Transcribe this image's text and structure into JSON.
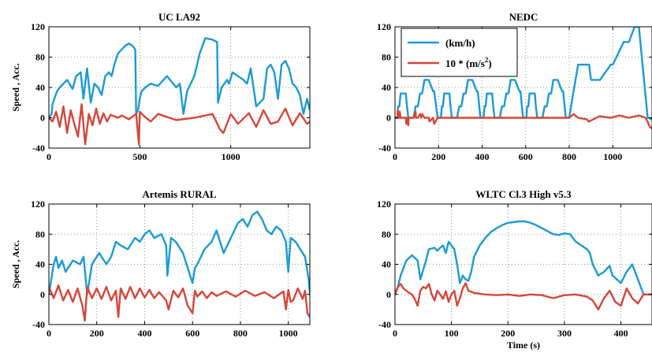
{
  "figure": {
    "legend_panel": 1,
    "legend": [
      {
        "label": "(km/h)",
        "color": "#1b9ad6"
      },
      {
        "label": "10 * (m/s",
        "sup": "2",
        "suffix": ")",
        "color": "#d6463a"
      }
    ]
  },
  "chart_data": [
    {
      "type": "line",
      "title": "UC LA92",
      "xlabel": "",
      "ylabel": "Speed , Acc.",
      "xlim": [
        0,
        1435
      ],
      "ylim": [
        -40,
        120
      ],
      "xticks": [
        0,
        500,
        1000
      ],
      "yticks": [
        -40,
        0,
        40,
        80,
        120
      ],
      "grid": true,
      "series": [
        {
          "color": "#1b9ad6",
          "x": [
            0,
            15,
            20,
            30,
            45,
            60,
            80,
            100,
            130,
            150,
            175,
            190,
            210,
            230,
            250,
            270,
            290,
            310,
            330,
            345,
            360,
            380,
            400,
            420,
            440,
            460,
            475,
            480,
            490,
            500,
            510,
            530,
            560,
            600,
            650,
            700,
            720,
            740,
            760,
            780,
            800,
            830,
            860,
            880,
            900,
            925,
            930,
            950,
            980,
            990,
            1010,
            1040,
            1070,
            1090,
            1110,
            1140,
            1160,
            1180,
            1200,
            1220,
            1240,
            1260,
            1280,
            1300,
            1320,
            1340,
            1360,
            1380,
            1400,
            1420,
            1435
          ],
          "y": [
            0,
            5,
            18,
            25,
            35,
            40,
            45,
            50,
            38,
            55,
            60,
            25,
            65,
            20,
            45,
            40,
            30,
            55,
            60,
            55,
            70,
            85,
            90,
            95,
            98,
            95,
            90,
            5,
            10,
            25,
            35,
            40,
            45,
            42,
            55,
            40,
            45,
            5,
            35,
            45,
            55,
            85,
            105,
            104,
            103,
            100,
            20,
            40,
            50,
            45,
            60,
            55,
            50,
            45,
            65,
            15,
            20,
            25,
            65,
            70,
            60,
            25,
            70,
            75,
            65,
            45,
            40,
            30,
            5,
            25,
            10
          ]
        },
        {
          "color": "#d6463a",
          "x": [
            0,
            20,
            40,
            60,
            80,
            100,
            120,
            140,
            160,
            180,
            200,
            220,
            240,
            260,
            280,
            300,
            320,
            340,
            360,
            380,
            400,
            440,
            480,
            495,
            500,
            520,
            560,
            600,
            700,
            800,
            900,
            940,
            960,
            1000,
            1040,
            1100,
            1140,
            1180,
            1220,
            1260,
            1300,
            1340,
            1380,
            1420,
            1435
          ],
          "y": [
            0,
            -5,
            8,
            -12,
            15,
            -20,
            10,
            -8,
            -25,
            18,
            -35,
            5,
            -10,
            12,
            -8,
            6,
            -5,
            4,
            2,
            0,
            3,
            -2,
            5,
            -35,
            8,
            3,
            -5,
            5,
            -3,
            0,
            5,
            -15,
            -20,
            5,
            -8,
            6,
            -12,
            10,
            -8,
            -5,
            12,
            -10,
            6,
            -8,
            -5
          ]
        }
      ]
    },
    {
      "type": "line",
      "title": "NEDC",
      "xlabel": "",
      "ylabel": "",
      "xlim": [
        0,
        1180
      ],
      "ylim": [
        -40,
        120
      ],
      "xticks": [
        0,
        200,
        400,
        600,
        800,
        1000
      ],
      "yticks": [
        -40,
        0,
        40,
        80,
        120
      ],
      "grid": true,
      "series": [
        {
          "color": "#1b9ad6",
          "x": [
            0,
            11,
            15,
            20,
            26,
            30,
            50,
            55,
            61,
            85,
            95,
            105,
            115,
            125,
            135,
            155,
            175,
            180,
            196,
            211,
            215,
            220,
            226,
            230,
            250,
            255,
            261,
            285,
            295,
            305,
            315,
            325,
            335,
            355,
            375,
            380,
            392,
            407,
            411,
            416,
            422,
            426,
            446,
            451,
            457,
            481,
            491,
            501,
            511,
            521,
            531,
            551,
            571,
            576,
            588,
            603,
            607,
            612,
            618,
            622,
            642,
            647,
            653,
            677,
            687,
            697,
            707,
            717,
            727,
            747,
            767,
            772,
            784,
            800,
            820,
            841,
            891,
            900,
            941,
            991,
            1000,
            1050,
            1074,
            1100,
            1120,
            1160,
            1180
          ],
          "y": [
            0,
            0,
            15,
            15,
            32,
            32,
            32,
            15,
            0,
            0,
            15,
            15,
            32,
            32,
            50,
            50,
            35,
            35,
            0,
            0,
            15,
            15,
            32,
            32,
            32,
            15,
            0,
            0,
            15,
            15,
            32,
            32,
            50,
            50,
            35,
            35,
            0,
            0,
            15,
            15,
            32,
            32,
            32,
            15,
            0,
            0,
            15,
            15,
            32,
            32,
            50,
            50,
            35,
            35,
            0,
            0,
            15,
            15,
            32,
            32,
            32,
            15,
            0,
            0,
            15,
            15,
            32,
            32,
            50,
            50,
            35,
            35,
            0,
            0,
            35,
            70,
            70,
            50,
            50,
            70,
            70,
            100,
            100,
            120,
            120,
            0,
            -2
          ]
        },
        {
          "color": "#d6463a",
          "x": [
            0,
            11,
            13,
            15,
            20,
            22,
            26,
            30,
            50,
            52,
            55,
            61,
            63,
            85,
            95,
            96,
            105,
            115,
            120,
            125,
            135,
            155,
            158,
            175,
            180,
            196,
            198,
            211,
            800,
            820,
            840,
            880,
            890,
            940,
            990,
            1030,
            1074,
            1120,
            1150,
            1160,
            1170,
            1180
          ],
          "y": [
            0,
            0,
            10,
            0,
            0,
            8,
            0,
            0,
            0,
            -8,
            0,
            -10,
            0,
            0,
            8,
            0,
            0,
            5,
            0,
            5,
            0,
            0,
            -5,
            0,
            -8,
            0,
            0,
            0,
            0,
            5,
            0,
            -2,
            -5,
            2,
            0,
            3,
            0,
            3,
            0,
            -5,
            -12,
            -14
          ]
        }
      ]
    },
    {
      "type": "line",
      "title": "Artemis RURAL",
      "xlabel": "",
      "ylabel": "Speed , Acc.",
      "xlim": [
        0,
        1090
      ],
      "ylim": [
        -40,
        120
      ],
      "xticks": [
        0,
        200,
        400,
        600,
        800,
        1000
      ],
      "yticks": [
        -40,
        0,
        40,
        80,
        120
      ],
      "grid": true,
      "series": [
        {
          "color": "#1b9ad6",
          "x": [
            0,
            10,
            20,
            30,
            40,
            55,
            70,
            100,
            130,
            145,
            160,
            180,
            210,
            240,
            260,
            280,
            300,
            330,
            360,
            380,
            400,
            420,
            440,
            470,
            490,
            495,
            510,
            530,
            560,
            600,
            610,
            620,
            650,
            680,
            700,
            730,
            760,
            790,
            810,
            830,
            850,
            870,
            890,
            910,
            930,
            950,
            970,
            990,
            1000,
            1010,
            1030,
            1050,
            1070,
            1085,
            1090
          ],
          "y": [
            0,
            20,
            40,
            50,
            35,
            45,
            30,
            45,
            40,
            50,
            0,
            40,
            55,
            40,
            50,
            70,
            65,
            60,
            75,
            70,
            80,
            85,
            75,
            80,
            65,
            25,
            75,
            70,
            55,
            15,
            35,
            40,
            60,
            70,
            85,
            55,
            75,
            95,
            100,
            90,
            105,
            110,
            100,
            85,
            80,
            90,
            85,
            70,
            30,
            75,
            70,
            60,
            50,
            20,
            0
          ]
        },
        {
          "color": "#d6463a",
          "x": [
            0,
            20,
            40,
            60,
            80,
            100,
            120,
            140,
            150,
            160,
            180,
            200,
            220,
            240,
            260,
            280,
            290,
            300,
            320,
            340,
            360,
            380,
            400,
            420,
            440,
            460,
            490,
            500,
            520,
            540,
            560,
            580,
            600,
            610,
            620,
            640,
            660,
            680,
            700,
            740,
            780,
            820,
            860,
            900,
            940,
            980,
            990,
            1000,
            1010,
            1020,
            1040,
            1060,
            1070,
            1080,
            1090
          ],
          "y": [
            10,
            -5,
            12,
            -8,
            6,
            -10,
            8,
            -15,
            -35,
            10,
            -5,
            8,
            -6,
            10,
            -8,
            5,
            -30,
            8,
            -6,
            10,
            -5,
            8,
            -4,
            6,
            -5,
            3,
            -8,
            -20,
            5,
            -4,
            8,
            -15,
            -25,
            5,
            -3,
            4,
            -5,
            3,
            -2,
            4,
            -3,
            5,
            -2,
            3,
            -5,
            4,
            -20,
            6,
            -10,
            -8,
            8,
            -6,
            5,
            -25,
            -30
          ]
        }
      ]
    },
    {
      "type": "line",
      "title": "WLTC Cl.3 High v5.3",
      "xlabel": "Time (s)",
      "ylabel": "",
      "xlim": [
        0,
        455
      ],
      "ylim": [
        -40,
        120
      ],
      "xticks": [
        0,
        100,
        200,
        300,
        400
      ],
      "yticks": [
        -40,
        0,
        40,
        80,
        120
      ],
      "grid": true,
      "series": [
        {
          "color": "#1b9ad6",
          "x": [
            0,
            5,
            10,
            20,
            30,
            40,
            45,
            55,
            60,
            70,
            75,
            80,
            85,
            90,
            95,
            100,
            105,
            110,
            115,
            120,
            125,
            130,
            135,
            140,
            150,
            160,
            170,
            180,
            190,
            200,
            210,
            220,
            230,
            240,
            250,
            260,
            270,
            280,
            290,
            300,
            310,
            320,
            330,
            340,
            345,
            350,
            360,
            370,
            380,
            385,
            390,
            400,
            410,
            420,
            430,
            440,
            455
          ],
          "y": [
            0,
            10,
            25,
            45,
            52,
            45,
            20,
            45,
            60,
            62,
            58,
            62,
            65,
            55,
            70,
            65,
            60,
            40,
            15,
            25,
            20,
            18,
            30,
            50,
            65,
            75,
            83,
            88,
            92,
            95,
            96,
            97,
            97,
            95,
            92,
            88,
            84,
            80,
            79,
            81,
            80,
            70,
            65,
            60,
            55,
            40,
            25,
            30,
            38,
            25,
            22,
            15,
            30,
            40,
            20,
            0,
            0
          ]
        },
        {
          "color": "#d6463a",
          "x": [
            0,
            5,
            10,
            15,
            20,
            25,
            30,
            35,
            40,
            45,
            50,
            55,
            60,
            65,
            70,
            75,
            80,
            85,
            90,
            95,
            100,
            105,
            110,
            115,
            120,
            125,
            130,
            140,
            160,
            180,
            200,
            220,
            240,
            260,
            280,
            300,
            320,
            340,
            350,
            360,
            370,
            380,
            390,
            400,
            410,
            420,
            430,
            440,
            455
          ],
          "y": [
            0,
            10,
            14,
            8,
            5,
            2,
            0,
            -6,
            -15,
            5,
            10,
            8,
            14,
            0,
            -8,
            5,
            0,
            -6,
            4,
            -10,
            0,
            5,
            -15,
            -5,
            8,
            15,
            5,
            2,
            0,
            -1,
            0,
            -2,
            0,
            -1,
            -5,
            -1,
            0,
            -3,
            -8,
            -20,
            -5,
            5,
            -10,
            -15,
            8,
            -5,
            -12,
            0,
            0
          ]
        }
      ]
    }
  ]
}
